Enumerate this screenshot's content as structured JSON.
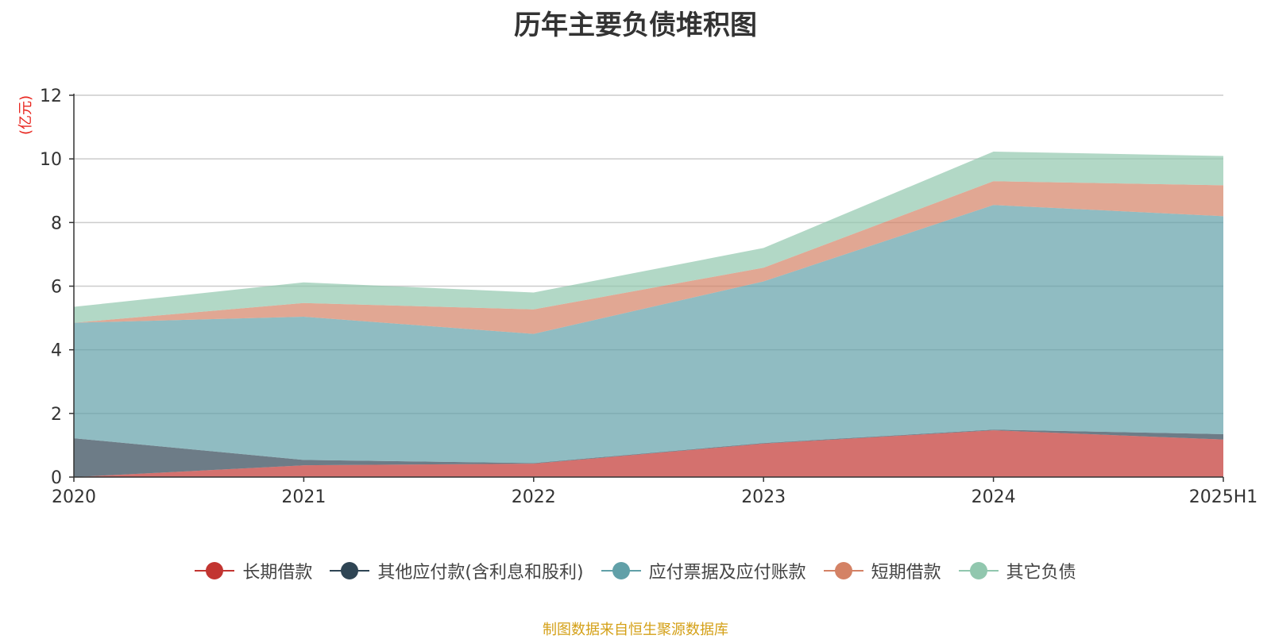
{
  "chart_data": {
    "type": "area",
    "stacked": true,
    "title": "历年主要负债堆积图",
    "ylabel": "(亿元)",
    "categories": [
      "2020",
      "2021",
      "2022",
      "2023",
      "2024",
      "2025H1"
    ],
    "ylim": [
      0,
      12
    ],
    "yticks": [
      0,
      2,
      4,
      6,
      8,
      10,
      12
    ],
    "grid": true,
    "legend_position": "bottom",
    "series": [
      {
        "name": "长期借款",
        "color": "#c23531",
        "values": [
          0.0,
          0.37,
          0.42,
          1.05,
          1.47,
          1.18
        ]
      },
      {
        "name": "其他应付款(含利息和股利)",
        "color": "#2f4554",
        "values": [
          1.22,
          0.17,
          0.02,
          0.02,
          0.02,
          0.17
        ]
      },
      {
        "name": "应付票据及应付账款",
        "color": "#61a0a8",
        "values": [
          3.63,
          4.5,
          4.06,
          5.08,
          7.06,
          6.85
        ]
      },
      {
        "name": "短期借款",
        "color": "#d48265",
        "values": [
          0.0,
          0.43,
          0.77,
          0.43,
          0.75,
          0.97
        ]
      },
      {
        "name": "其它负债",
        "color": "#91c7ae",
        "values": [
          0.5,
          0.65,
          0.53,
          0.62,
          0.93,
          0.92
        ]
      }
    ]
  },
  "source_note": "制图数据来自恒生聚源数据库"
}
